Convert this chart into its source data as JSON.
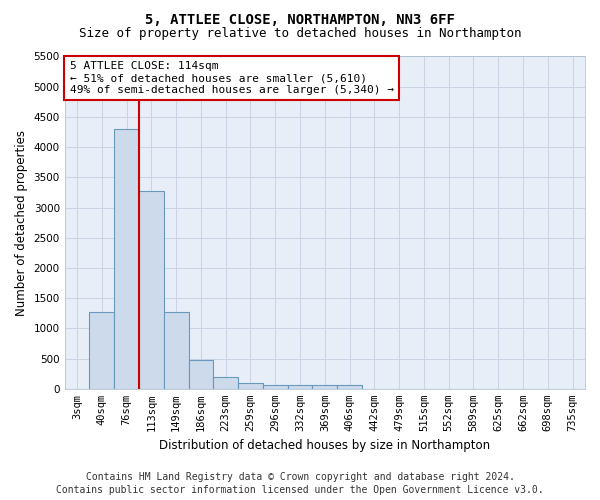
{
  "title": "5, ATTLEE CLOSE, NORTHAMPTON, NN3 6FF",
  "subtitle": "Size of property relative to detached houses in Northampton",
  "xlabel": "Distribution of detached houses by size in Northampton",
  "ylabel": "Number of detached properties",
  "footer_line1": "Contains HM Land Registry data © Crown copyright and database right 2024.",
  "footer_line2": "Contains public sector information licensed under the Open Government Licence v3.0.",
  "categories": [
    "3sqm",
    "40sqm",
    "76sqm",
    "113sqm",
    "149sqm",
    "186sqm",
    "223sqm",
    "259sqm",
    "296sqm",
    "332sqm",
    "369sqm",
    "406sqm",
    "442sqm",
    "479sqm",
    "515sqm",
    "552sqm",
    "589sqm",
    "625sqm",
    "662sqm",
    "698sqm",
    "735sqm"
  ],
  "values": [
    0,
    1270,
    4300,
    3280,
    1270,
    480,
    200,
    100,
    70,
    55,
    55,
    55,
    0,
    0,
    0,
    0,
    0,
    0,
    0,
    0,
    0
  ],
  "bar_color": "#cddaec",
  "bar_edge_color": "#6699bb",
  "vline_x_index": 2,
  "vline_color": "#cc0000",
  "annotation_text": "5 ATTLEE CLOSE: 114sqm\n← 51% of detached houses are smaller (5,610)\n49% of semi-detached houses are larger (5,340) →",
  "annotation_box_color": "#cc0000",
  "ylim": [
    0,
    5500
  ],
  "yticks": [
    0,
    500,
    1000,
    1500,
    2000,
    2500,
    3000,
    3500,
    4000,
    4500,
    5000,
    5500
  ],
  "grid_color": "#c8d4e4",
  "background_color": "#e8eef8",
  "title_fontsize": 10,
  "subtitle_fontsize": 9,
  "axis_label_fontsize": 8.5,
  "tick_fontsize": 7.5,
  "footer_fontsize": 7,
  "ann_fontsize": 8
}
